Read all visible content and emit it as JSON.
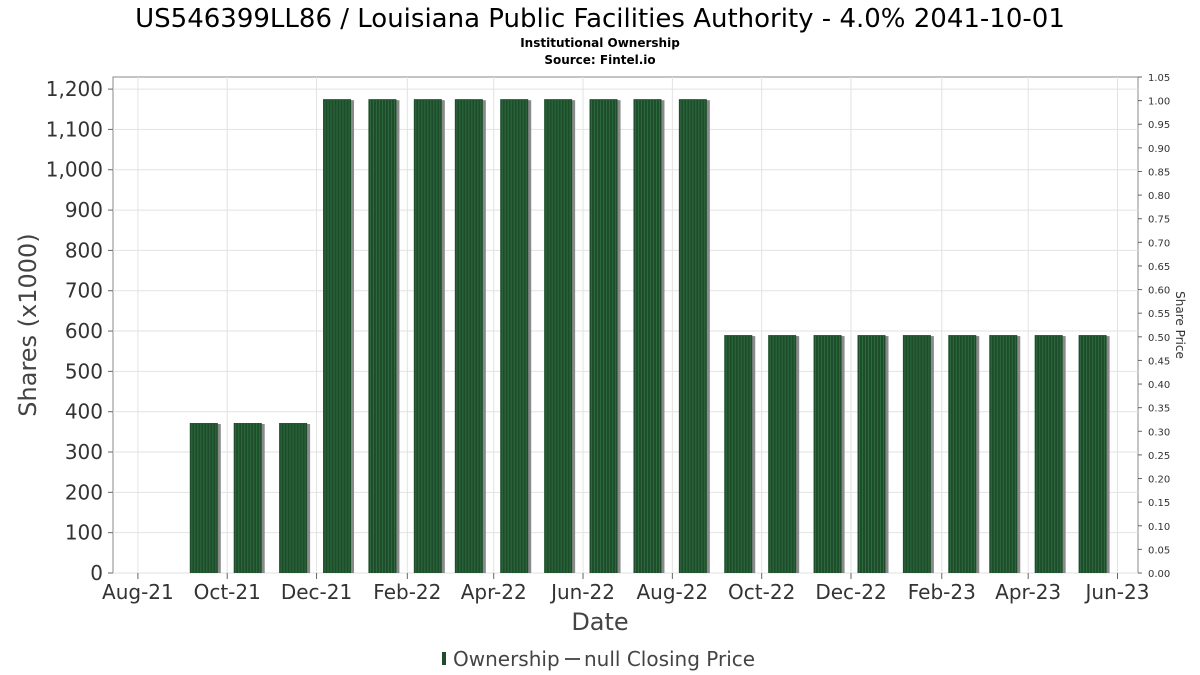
{
  "chart_data": {
    "type": "bar",
    "title": "US546399LL86 / Louisiana Public Facilities Authority - 4.0% 2041-10-01",
    "subtitle_lines": [
      "Institutional Ownership",
      "Source: Fintel.io"
    ],
    "xlabel": "Date",
    "ylabel": "Shares (x1000)",
    "y2label": "Share Price",
    "ylim": [
      0,
      1230
    ],
    "y2lim": [
      0,
      1.05
    ],
    "xlim": [
      "2021-07-15",
      "2023-06-15"
    ],
    "yticks": [
      0,
      100,
      200,
      300,
      400,
      500,
      600,
      700,
      800,
      900,
      1000,
      1100,
      1200
    ],
    "ytick_labels": [
      "0",
      "100",
      "200",
      "300",
      "400",
      "500",
      "600",
      "700",
      "800",
      "900",
      "1,000",
      "1,100",
      "1,200"
    ],
    "y2ticks": [
      "0.00",
      "0.05",
      "0.10",
      "0.15",
      "0.20",
      "0.25",
      "0.30",
      "0.35",
      "0.40",
      "0.45",
      "0.50",
      "0.55",
      "0.60",
      "0.65",
      "0.70",
      "0.75",
      "0.80",
      "0.85",
      "0.90",
      "0.95",
      "1.00",
      "1.05"
    ],
    "xticks": [
      {
        "date": "2021-08-01",
        "label": "Aug-21"
      },
      {
        "date": "2021-10-01",
        "label": "Oct-21"
      },
      {
        "date": "2021-12-01",
        "label": "Dec-21"
      },
      {
        "date": "2022-02-01",
        "label": "Feb-22"
      },
      {
        "date": "2022-04-01",
        "label": "Apr-22"
      },
      {
        "date": "2022-06-01",
        "label": "Jun-22"
      },
      {
        "date": "2022-08-01",
        "label": "Aug-22"
      },
      {
        "date": "2022-10-01",
        "label": "Oct-22"
      },
      {
        "date": "2022-12-01",
        "label": "Dec-22"
      },
      {
        "date": "2023-02-01",
        "label": "Feb-23"
      },
      {
        "date": "2023-04-01",
        "label": "Apr-23"
      },
      {
        "date": "2023-06-01",
        "label": "Jun-23"
      }
    ],
    "series": [
      {
        "name": "Ownership",
        "color": "#1e4d2b",
        "shadow_color": "#8a8a8a",
        "points": [
          {
            "date": "2021-09-15",
            "value": 372
          },
          {
            "date": "2021-10-15",
            "value": 372
          },
          {
            "date": "2021-11-15",
            "value": 372
          },
          {
            "date": "2021-12-15",
            "value": 1175
          },
          {
            "date": "2022-01-15",
            "value": 1175
          },
          {
            "date": "2022-02-15",
            "value": 1175
          },
          {
            "date": "2022-03-15",
            "value": 1175
          },
          {
            "date": "2022-04-15",
            "value": 1175
          },
          {
            "date": "2022-05-15",
            "value": 1175
          },
          {
            "date": "2022-06-15",
            "value": 1175
          },
          {
            "date": "2022-07-15",
            "value": 1175
          },
          {
            "date": "2022-08-15",
            "value": 1175
          },
          {
            "date": "2022-09-15",
            "value": 590
          },
          {
            "date": "2022-10-15",
            "value": 590
          },
          {
            "date": "2022-11-15",
            "value": 590
          },
          {
            "date": "2022-12-15",
            "value": 590
          },
          {
            "date": "2023-01-15",
            "value": 590
          },
          {
            "date": "2023-02-15",
            "value": 590
          },
          {
            "date": "2023-03-15",
            "value": 590
          },
          {
            "date": "2023-04-15",
            "value": 590
          },
          {
            "date": "2023-05-15",
            "value": 590
          }
        ]
      },
      {
        "name": "null Closing Price",
        "color": "#555555",
        "points": []
      }
    ],
    "grid": true,
    "legend_position": "bottom-center"
  }
}
